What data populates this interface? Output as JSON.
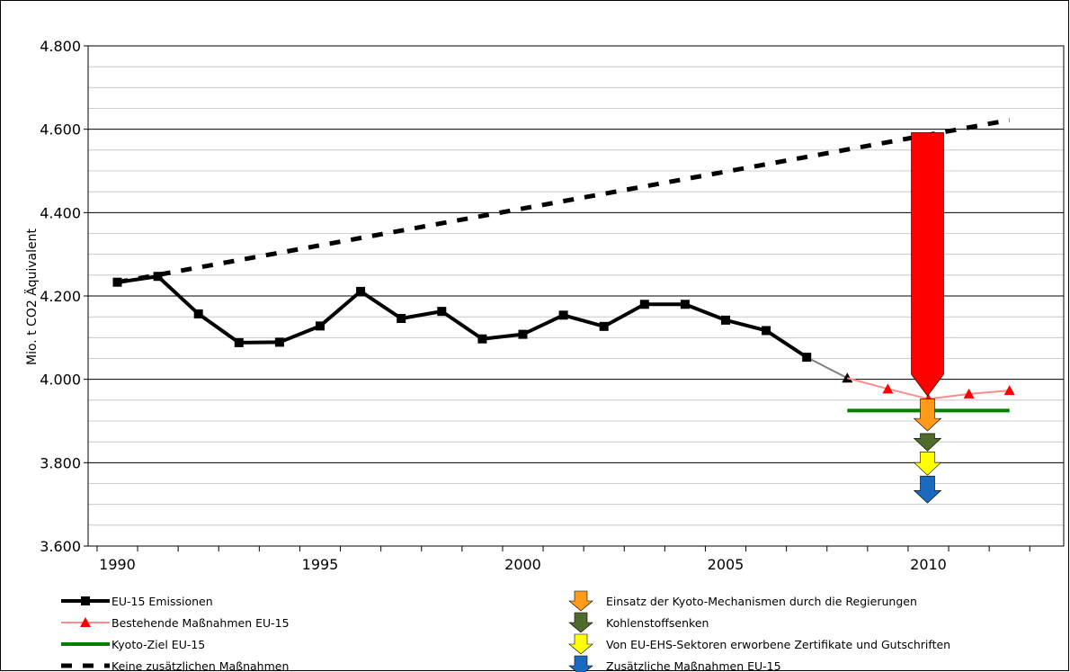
{
  "chart_data": {
    "type": "line",
    "title": "",
    "xlabel": "",
    "ylabel": "Mio. t CO2 Äquivalent",
    "xlim": [
      1989.5,
      2013.0
    ],
    "ylim": [
      3600,
      4800
    ],
    "yticks": [
      3600,
      3800,
      4000,
      4200,
      4400,
      4600,
      4800
    ],
    "ytick_labels": [
      "3.600",
      "3.800",
      "4.000",
      "4.200",
      "4.400",
      "4.600",
      "4.800"
    ],
    "xticks": [
      1990,
      1995,
      2000,
      2005,
      2010
    ],
    "xtick_labels": [
      "1990",
      "1995",
      "2000",
      "2005",
      "2010"
    ],
    "grid": true,
    "legend_position": "bottom",
    "series": [
      {
        "name": "EU-15 Emissionen",
        "style": "line-square",
        "color": "#000000",
        "x": [
          1990,
          1991,
          1992,
          1993,
          1994,
          1995,
          1996,
          1997,
          1998,
          1999,
          2000,
          2001,
          2002,
          2003,
          2004,
          2005,
          2006,
          2007
        ],
        "y": [
          4233,
          4247,
          4157,
          4088,
          4089,
          4128,
          4211,
          4146,
          4163,
          4097,
          4108,
          4154,
          4127,
          4180,
          4180,
          4142,
          4117,
          4053
        ]
      },
      {
        "name": "",
        "style": "connector",
        "color": "#808080",
        "x": [
          2007,
          2008
        ],
        "y": [
          4053,
          4003
        ]
      },
      {
        "name": "Bestehende Maßnahmen EU-15",
        "style": "line-triangle",
        "color": "#ff8c8c",
        "marker_color": "#ff0000",
        "x": [
          2008,
          2009,
          2010,
          2011,
          2012
        ],
        "y": [
          4003,
          3977,
          3953,
          3965,
          3973
        ]
      },
      {
        "name": "Kyoto-Ziel EU-15",
        "style": "line",
        "color": "#008000",
        "x": [
          2008,
          2012
        ],
        "y": [
          3925,
          3925
        ]
      },
      {
        "name": "Keine zusätzlichen Maßnahmen",
        "style": "dashed",
        "color": "#000000",
        "x": [
          1990,
          2012
        ],
        "y": [
          4233,
          4622
        ]
      }
    ],
    "arrows": [
      {
        "name": "",
        "color": "#ff0000",
        "x": 2010,
        "from": 4592,
        "to": 3960
      },
      {
        "name": "Einsatz der Kyoto-Mechanismen durch die Regierungen",
        "color": "#ff9a1a",
        "x": 2010,
        "from": 3953,
        "to": 3876
      },
      {
        "name": "Kohlenstoffsenken",
        "color": "#4e6b2c",
        "x": 2010,
        "from": 3870,
        "to": 3828
      },
      {
        "name": "Von EU-EHS-Sektoren erworbene Zertifikate und Gutschriften",
        "color": "#ffff00",
        "x": 2010,
        "from": 3826,
        "to": 3770
      },
      {
        "name": "Zusätzliche Maßnahmen EU-15",
        "color": "#1a6bbf",
        "x": 2010,
        "from": 3768,
        "to": 3703
      }
    ]
  }
}
